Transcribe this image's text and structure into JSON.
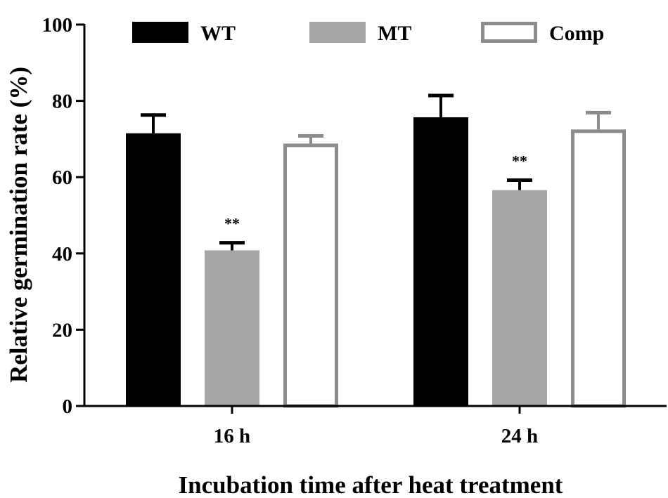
{
  "chart_data": {
    "type": "bar",
    "title": "",
    "xlabel": "Incubation time after heat treatment",
    "ylabel": "Relative germination rate (%)",
    "ylim": [
      0,
      100
    ],
    "yticks": [
      "0",
      "20",
      "40",
      "60",
      "80",
      "100"
    ],
    "categories": [
      "16 h",
      "24 h"
    ],
    "series": [
      {
        "name": "WT",
        "values": [
          71.5,
          75.7
        ],
        "errors": [
          4.8,
          5.7
        ],
        "fill": "#000000",
        "stroke": "#000000"
      },
      {
        "name": "MT",
        "values": [
          40.8,
          56.6
        ],
        "errors": [
          2.0,
          2.6
        ],
        "fill": "#a6a6a8",
        "stroke": "#a6a6a8"
      },
      {
        "name": "Comp",
        "values": [
          68.8,
          72.5
        ],
        "errors": [
          2.0,
          4.4
        ],
        "fill": "#ffffff",
        "stroke": "#8c8c8c"
      }
    ],
    "annotations": [
      {
        "category": "16 h",
        "series": "MT",
        "text": "**"
      },
      {
        "category": "24 h",
        "series": "MT",
        "text": "**"
      }
    ],
    "legend_position": "top",
    "grid": false
  }
}
